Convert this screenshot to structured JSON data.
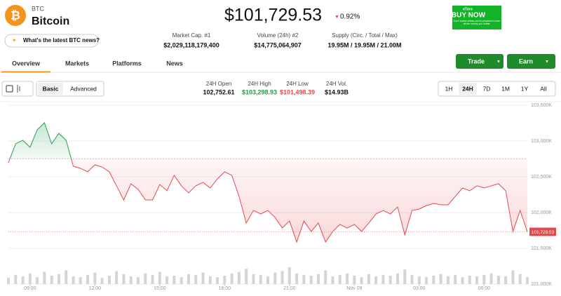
{
  "header": {
    "symbol": "BTC",
    "name": "Bitcoin",
    "news_prompt": "What's the latest BTC news?",
    "price": "$101,729.53",
    "change": "0.92%"
  },
  "stats": [
    {
      "label": "Market Cap. #1",
      "value": "$2,029,118,179,400"
    },
    {
      "label": "Volume (24h) #2",
      "value": "$14,775,064,907"
    },
    {
      "label": "Supply (Circ. / Total / Max)",
      "value": "19.95M / 19.95M / 21.00M"
    }
  ],
  "ad": {
    "brand": "eToro",
    "cta": "BUY NOW",
    "disclaimer": "Don't invest unless you're prepared to lose all the money you invest."
  },
  "tabs": [
    "Overview",
    "Markets",
    "Platforms",
    "News"
  ],
  "buttons": [
    "Trade",
    "Earn"
  ],
  "modes": [
    "Basic",
    "Advanced"
  ],
  "day_stats": [
    {
      "label": "24H Open",
      "value": "102,752.61"
    },
    {
      "label": "24H High",
      "value": "$103,298.93"
    },
    {
      "label": "24H Low",
      "value": "$101,498.39"
    },
    {
      "label": "24H Vol.",
      "value": "$14.93B"
    }
  ],
  "ranges": [
    "1H",
    "24H",
    "7D",
    "1M",
    "1Y",
    "All"
  ],
  "chart_data": {
    "type": "line",
    "baseline": 102752.61,
    "last_price_label": "101,729.53",
    "up_color": "#1e9e4a",
    "down_color": "#e5484d",
    "values": [
      102696,
      102961,
      103010,
      102912,
      103157,
      103255,
      102961,
      103108,
      103010,
      102647,
      102618,
      102569,
      102667,
      102637,
      102569,
      102373,
      102176,
      102402,
      102324,
      102176,
      102176,
      102392,
      102304,
      102520,
      102373,
      102275,
      102373,
      102422,
      102343,
      102471,
      102569,
      102520,
      102225,
      101853,
      102029,
      101980,
      102029,
      101931,
      101784,
      101882,
      101588,
      101882,
      101735,
      101853,
      101588,
      101735,
      101833,
      101784,
      101833,
      101735,
      101853,
      101980,
      102029,
      101980,
      102078,
      101686,
      102029,
      102049,
      102098,
      102127,
      102108,
      102108,
      102225,
      102343,
      102304,
      102373,
      102343,
      102373,
      102402,
      102304,
      101735,
      102029,
      101730
    ],
    "volume": [
      8,
      12,
      10,
      14,
      9,
      16,
      11,
      13,
      18,
      10,
      9,
      12,
      15,
      8,
      11,
      17,
      13,
      10,
      9,
      14,
      12,
      16,
      10,
      11,
      9,
      13,
      12,
      15,
      10,
      9,
      11,
      14,
      16,
      20,
      13,
      12,
      10,
      15,
      17,
      22,
      14,
      12,
      11,
      13,
      18,
      10,
      12,
      14,
      11,
      9,
      13,
      10,
      12,
      11,
      14,
      19,
      12,
      10,
      9,
      11,
      13,
      10,
      12,
      9,
      11,
      10,
      12,
      14,
      11,
      10,
      18,
      13,
      9
    ],
    "xlim": [
      0,
      72
    ],
    "xticks": [
      {
        "value": 3,
        "label": "09:00"
      },
      {
        "value": 12,
        "label": "12:00"
      },
      {
        "value": 21,
        "label": "15:00"
      },
      {
        "value": 30,
        "label": "18:00"
      },
      {
        "value": 39,
        "label": "21:00"
      },
      {
        "value": 48,
        "label": "Nov 09"
      },
      {
        "value": 57,
        "label": "03:00"
      },
      {
        "value": 66,
        "label": "06:00"
      }
    ],
    "ylim": [
      101000,
      103500
    ],
    "yticks": [
      {
        "value": 101000,
        "label": "101,000K"
      },
      {
        "value": 101500,
        "label": "101,500K"
      },
      {
        "value": 102000,
        "label": "102,000K"
      },
      {
        "value": 102500,
        "label": "102,500K"
      },
      {
        "value": 103000,
        "label": "103,000K"
      },
      {
        "value": 103500,
        "label": "103,500K"
      }
    ]
  }
}
